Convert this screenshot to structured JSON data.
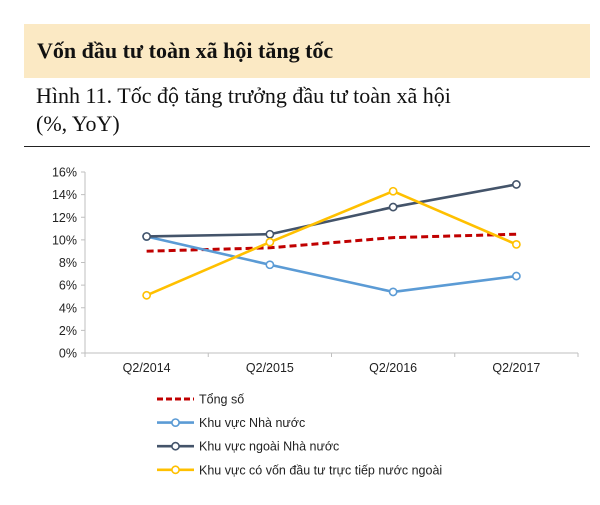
{
  "header": {
    "banner_title": "Vốn đầu tư toàn xã hội tăng tốc",
    "figure_title_line1": "Hình 11. Tốc độ tăng trưởng đầu tư toàn xã hội",
    "figure_title_line2": "(%, YoY)"
  },
  "colors": {
    "banner_background": "#fbe9c4",
    "series": [
      "#c00000",
      "#5b9bd5",
      "#44546a",
      "#ffc000"
    ]
  },
  "chart_data": {
    "type": "line",
    "title": "Hình 11. Tốc độ tăng trưởng đầu tư toàn xã hội (%, YoY)",
    "categories": [
      "Q2/2014",
      "Q2/2015",
      "Q2/2016",
      "Q2/2017"
    ],
    "ylim": [
      0,
      16
    ],
    "y_ticks": [
      "0%",
      "2%",
      "4%",
      "6%",
      "8%",
      "10%",
      "12%",
      "14%",
      "16%"
    ],
    "y_unit": "%",
    "grid": false,
    "legend_position": "bottom",
    "series": [
      {
        "name": "Tổng số",
        "values": [
          9.0,
          9.3,
          10.2,
          10.5
        ],
        "style": "dashed",
        "markers": false
      },
      {
        "name": "Khu vực Nhà nước",
        "values": [
          10.3,
          7.8,
          5.4,
          6.8
        ],
        "style": "solid",
        "markers": true
      },
      {
        "name": "Khu vực ngoài Nhà nước",
        "values": [
          10.3,
          10.5,
          12.9,
          14.9
        ],
        "style": "solid",
        "markers": true
      },
      {
        "name": "Khu vực có vốn đầu tư trực tiếp nước ngoài",
        "values": [
          5.1,
          9.8,
          14.3,
          9.6
        ],
        "style": "solid",
        "markers": true
      }
    ]
  }
}
